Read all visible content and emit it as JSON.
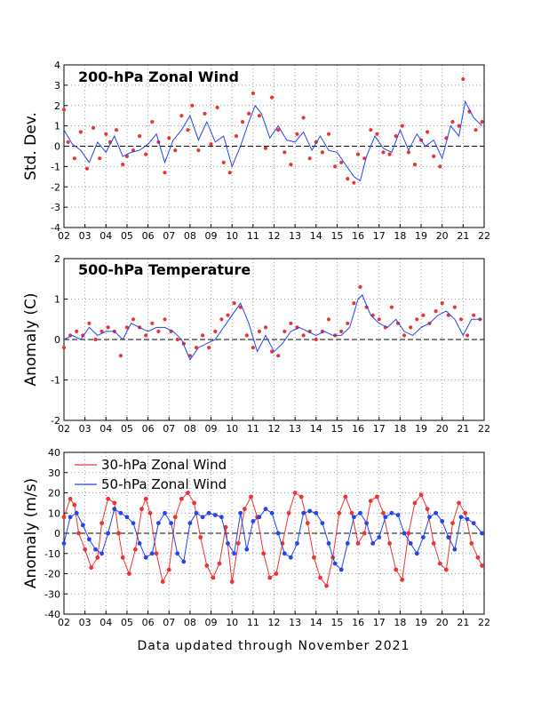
{
  "footer": "Data updated through November 2021",
  "colors": {
    "red": "#ee3333",
    "blue": "#2244ee",
    "grid": "#999999"
  },
  "chart_data": [
    {
      "type": "scatter",
      "title": "200-hPa Zonal Wind",
      "ylabel": "Std. Dev.",
      "ylim": [
        -4,
        4
      ],
      "yticks": [
        "4",
        "3",
        "2",
        "1",
        "0",
        "-1",
        "-2",
        "-3",
        "-4"
      ],
      "xticks": [
        "02",
        "03",
        "04",
        "05",
        "06",
        "07",
        "08",
        "09",
        "10",
        "11",
        "12",
        "13",
        "14",
        "15",
        "16",
        "17",
        "18",
        "19",
        "20",
        "21",
        "22"
      ],
      "grid": true,
      "series": [
        {
          "style": "points",
          "color": "red",
          "x": [
            2.0,
            2.2,
            2.5,
            2.8,
            3.1,
            3.4,
            3.7,
            4.0,
            4.2,
            4.5,
            4.8,
            5.0,
            5.3,
            5.6,
            5.9,
            6.2,
            6.5,
            6.8,
            7.0,
            7.3,
            7.6,
            7.9,
            8.1,
            8.4,
            8.7,
            9.0,
            9.3,
            9.6,
            9.9,
            10.2,
            10.5,
            10.8,
            11.0,
            11.3,
            11.6,
            11.9,
            12.2,
            12.5,
            12.8,
            13.1,
            13.4,
            13.7,
            14.0,
            14.3,
            14.6,
            14.9,
            15.2,
            15.5,
            15.8,
            16.0,
            16.3,
            16.6,
            16.9,
            17.2,
            17.5,
            17.8,
            18.1,
            18.4,
            18.7,
            19.0,
            19.3,
            19.6,
            19.9,
            20.2,
            20.5,
            20.8,
            21.0,
            21.3,
            21.6,
            21.9
          ],
          "y": [
            1.8,
            0.2,
            -0.6,
            0.7,
            -1.1,
            0.9,
            -0.6,
            0.6,
            0.2,
            0.8,
            -0.9,
            -0.5,
            -0.2,
            0.5,
            -0.4,
            1.2,
            0.2,
            -1.3,
            0.4,
            -0.2,
            1.5,
            0.8,
            2.0,
            -0.2,
            1.6,
            0.1,
            1.9,
            -0.8,
            -1.3,
            0.5,
            1.2,
            1.6,
            2.6,
            1.5,
            -0.1,
            2.4,
            0.8,
            -0.3,
            -0.9,
            0.6,
            1.4,
            -0.6,
            0.2,
            -0.3,
            0.6,
            -1.0,
            -0.8,
            -1.6,
            -1.8,
            -0.4,
            -0.6,
            0.8,
            0.6,
            -0.3,
            -0.4,
            0.5,
            1.0,
            -0.3,
            -0.9,
            0.3,
            0.7,
            -0.5,
            -1.0,
            0.4,
            1.2,
            1.0,
            3.3,
            1.7,
            0.8,
            1.2
          ]
        },
        {
          "style": "line",
          "color": "blue",
          "x": [
            2.0,
            2.4,
            2.8,
            3.2,
            3.6,
            4.0,
            4.4,
            4.8,
            5.2,
            5.6,
            6.0,
            6.4,
            6.8,
            7.2,
            7.6,
            8.0,
            8.4,
            8.8,
            9.2,
            9.6,
            10.0,
            10.4,
            10.8,
            11.1,
            11.4,
            11.8,
            12.2,
            12.6,
            13.0,
            13.4,
            13.8,
            14.2,
            14.6,
            15.0,
            15.4,
            15.8,
            16.1,
            16.4,
            16.8,
            17.2,
            17.6,
            18.0,
            18.4,
            18.8,
            19.2,
            19.6,
            20.0,
            20.4,
            20.8,
            21.1,
            21.5,
            21.9
          ],
          "y": [
            0.8,
            0.1,
            -0.2,
            -0.8,
            0.2,
            -0.3,
            0.5,
            -0.5,
            -0.3,
            -0.2,
            0.1,
            0.6,
            -0.8,
            0.3,
            0.8,
            1.5,
            0.3,
            1.2,
            0.2,
            0.5,
            -1.0,
            0.0,
            1.2,
            2.0,
            1.6,
            0.4,
            1.0,
            0.3,
            0.2,
            0.7,
            -0.2,
            0.5,
            -0.2,
            -0.3,
            -0.9,
            -1.5,
            -1.7,
            -0.5,
            0.5,
            -0.1,
            -0.3,
            0.8,
            -0.2,
            0.6,
            0.0,
            0.3,
            -0.6,
            1.0,
            0.5,
            2.2,
            1.4,
            1.0
          ]
        }
      ]
    },
    {
      "type": "scatter",
      "title": "500-hPa Temperature",
      "ylabel": "Anomaly (C)",
      "ylim": [
        -2,
        2
      ],
      "yticks": [
        "2",
        "1",
        "0",
        "-1",
        "-2"
      ],
      "xticks": [
        "02",
        "03",
        "04",
        "05",
        "06",
        "07",
        "08",
        "09",
        "10",
        "11",
        "12",
        "13",
        "14",
        "15",
        "16",
        "17",
        "18",
        "19",
        "20",
        "21",
        "22"
      ],
      "grid": true,
      "series": [
        {
          "style": "points",
          "color": "red",
          "x": [
            2.0,
            2.3,
            2.6,
            2.9,
            3.2,
            3.5,
            3.8,
            4.1,
            4.4,
            4.7,
            5.0,
            5.3,
            5.6,
            5.9,
            6.2,
            6.5,
            6.8,
            7.1,
            7.4,
            7.7,
            8.0,
            8.3,
            8.6,
            8.9,
            9.2,
            9.5,
            9.8,
            10.1,
            10.4,
            10.7,
            11.0,
            11.3,
            11.6,
            11.9,
            12.2,
            12.5,
            12.8,
            13.1,
            13.4,
            13.7,
            14.0,
            14.3,
            14.6,
            14.9,
            15.2,
            15.5,
            15.8,
            16.1,
            16.4,
            16.7,
            17.0,
            17.3,
            17.6,
            17.9,
            18.2,
            18.5,
            18.8,
            19.1,
            19.4,
            19.7,
            20.0,
            20.3,
            20.6,
            20.9,
            21.2,
            21.5,
            21.8
          ],
          "y": [
            -0.2,
            0.1,
            0.2,
            0.1,
            0.4,
            0.0,
            0.2,
            0.3,
            0.2,
            -0.4,
            0.3,
            0.5,
            0.3,
            0.1,
            0.4,
            0.2,
            0.5,
            0.2,
            0.0,
            -0.1,
            -0.4,
            -0.2,
            0.1,
            -0.2,
            0.2,
            0.5,
            0.6,
            0.9,
            0.8,
            0.1,
            -0.2,
            0.2,
            0.3,
            -0.3,
            -0.4,
            0.2,
            0.4,
            0.3,
            0.1,
            0.2,
            0.0,
            0.2,
            0.5,
            0.1,
            0.2,
            0.4,
            0.9,
            1.3,
            0.8,
            0.6,
            0.5,
            0.3,
            0.8,
            0.4,
            0.1,
            0.3,
            0.5,
            0.6,
            0.4,
            0.7,
            0.9,
            0.6,
            0.8,
            0.5,
            0.1,
            0.6,
            0.5
          ]
        },
        {
          "style": "line",
          "color": "blue",
          "x": [
            2.0,
            2.4,
            2.8,
            3.2,
            3.6,
            4.0,
            4.4,
            4.8,
            5.2,
            5.6,
            6.0,
            6.4,
            6.8,
            7.2,
            7.6,
            8.0,
            8.4,
            8.8,
            9.2,
            9.6,
            10.0,
            10.4,
            10.8,
            11.2,
            11.6,
            12.0,
            12.4,
            12.8,
            13.2,
            13.6,
            14.0,
            14.4,
            14.8,
            15.2,
            15.6,
            16.0,
            16.2,
            16.6,
            17.0,
            17.4,
            17.8,
            18.2,
            18.6,
            19.0,
            19.4,
            19.8,
            20.2,
            20.6,
            21.0,
            21.4,
            21.9
          ],
          "y": [
            0.0,
            0.1,
            0.0,
            0.3,
            0.1,
            0.2,
            0.2,
            0.0,
            0.4,
            0.3,
            0.2,
            0.3,
            0.3,
            0.2,
            0.0,
            -0.5,
            -0.2,
            -0.1,
            0.0,
            0.3,
            0.6,
            0.9,
            0.4,
            -0.3,
            0.1,
            -0.3,
            -0.1,
            0.2,
            0.3,
            0.2,
            0.1,
            0.2,
            0.1,
            0.1,
            0.3,
            1.0,
            1.1,
            0.6,
            0.4,
            0.3,
            0.5,
            0.2,
            0.1,
            0.3,
            0.4,
            0.6,
            0.7,
            0.5,
            0.1,
            0.5,
            0.5
          ]
        }
      ]
    },
    {
      "type": "scatter",
      "title": "",
      "ylabel": "Anomaly (m/s)",
      "ylim": [
        -40,
        40
      ],
      "yticks": [
        "40",
        "30",
        "20",
        "10",
        "0",
        "-10",
        "-20",
        "-30",
        "-40"
      ],
      "xticks": [
        "02",
        "03",
        "04",
        "05",
        "06",
        "07",
        "08",
        "09",
        "10",
        "11",
        "12",
        "13",
        "14",
        "15",
        "16",
        "17",
        "18",
        "19",
        "20",
        "21",
        "22"
      ],
      "grid": true,
      "legend": [
        "30-hPa Zonal Wind",
        "50-hPa Zonal Wind"
      ],
      "legend_position": "top-left",
      "series": [
        {
          "name": "30-hPa Zonal Wind",
          "style": "dots-line",
          "color": "red",
          "x": [
            2.0,
            2.3,
            2.5,
            2.7,
            3.0,
            3.3,
            3.6,
            3.8,
            4.1,
            4.4,
            4.6,
            4.8,
            5.1,
            5.4,
            5.7,
            5.9,
            6.1,
            6.4,
            6.7,
            7.0,
            7.3,
            7.6,
            7.9,
            8.2,
            8.5,
            8.8,
            9.1,
            9.4,
            9.7,
            10.0,
            10.3,
            10.6,
            10.9,
            11.2,
            11.5,
            11.8,
            12.1,
            12.4,
            12.7,
            13.0,
            13.3,
            13.6,
            13.9,
            14.2,
            14.5,
            14.8,
            15.1,
            15.4,
            15.7,
            16.0,
            16.3,
            16.6,
            16.9,
            17.2,
            17.5,
            17.8,
            18.1,
            18.4,
            18.7,
            19.0,
            19.3,
            19.6,
            19.9,
            20.2,
            20.5,
            20.8,
            21.1,
            21.4,
            21.7,
            21.9
          ],
          "y": [
            8,
            17,
            14,
            0,
            -8,
            -17,
            -12,
            5,
            17,
            15,
            0,
            -12,
            -20,
            -8,
            12,
            17,
            10,
            -10,
            -24,
            -18,
            8,
            17,
            20,
            15,
            -2,
            -16,
            -22,
            -15,
            3,
            -24,
            -5,
            12,
            18,
            8,
            -10,
            -22,
            -20,
            -5,
            10,
            20,
            18,
            5,
            -12,
            -22,
            -26,
            -12,
            10,
            18,
            10,
            -5,
            0,
            16,
            18,
            10,
            -5,
            -18,
            -23,
            0,
            15,
            19,
            12,
            -5,
            -15,
            -18,
            5,
            15,
            10,
            -5,
            -12,
            -16
          ]
        },
        {
          "name": "50-hPa Zonal Wind",
          "style": "dots-line",
          "color": "blue",
          "x": [
            2.0,
            2.3,
            2.6,
            2.9,
            3.2,
            3.5,
            3.8,
            4.1,
            4.4,
            4.7,
            5.0,
            5.3,
            5.6,
            5.9,
            6.2,
            6.5,
            6.8,
            7.1,
            7.4,
            7.7,
            8.0,
            8.3,
            8.6,
            8.9,
            9.2,
            9.5,
            9.8,
            10.1,
            10.4,
            10.7,
            11.0,
            11.3,
            11.6,
            11.9,
            12.2,
            12.5,
            12.8,
            13.1,
            13.4,
            13.7,
            14.0,
            14.3,
            14.6,
            14.9,
            15.2,
            15.5,
            15.8,
            16.1,
            16.4,
            16.7,
            17.0,
            17.3,
            17.6,
            17.9,
            18.2,
            18.5,
            18.8,
            19.1,
            19.4,
            19.7,
            20.0,
            20.3,
            20.6,
            20.9,
            21.2,
            21.5,
            21.9
          ],
          "y": [
            -5,
            8,
            10,
            4,
            -3,
            -8,
            -10,
            0,
            12,
            10,
            8,
            5,
            -5,
            -12,
            -10,
            5,
            10,
            5,
            -10,
            -14,
            5,
            10,
            8,
            10,
            9,
            8,
            -5,
            -10,
            10,
            -8,
            6,
            8,
            12,
            10,
            0,
            -10,
            -12,
            -5,
            10,
            11,
            10,
            5,
            -5,
            -15,
            -18,
            -5,
            8,
            10,
            5,
            -5,
            -2,
            8,
            10,
            9,
            0,
            -5,
            -10,
            -2,
            8,
            10,
            6,
            -2,
            -8,
            8,
            7,
            5,
            0
          ]
        }
      ]
    }
  ]
}
